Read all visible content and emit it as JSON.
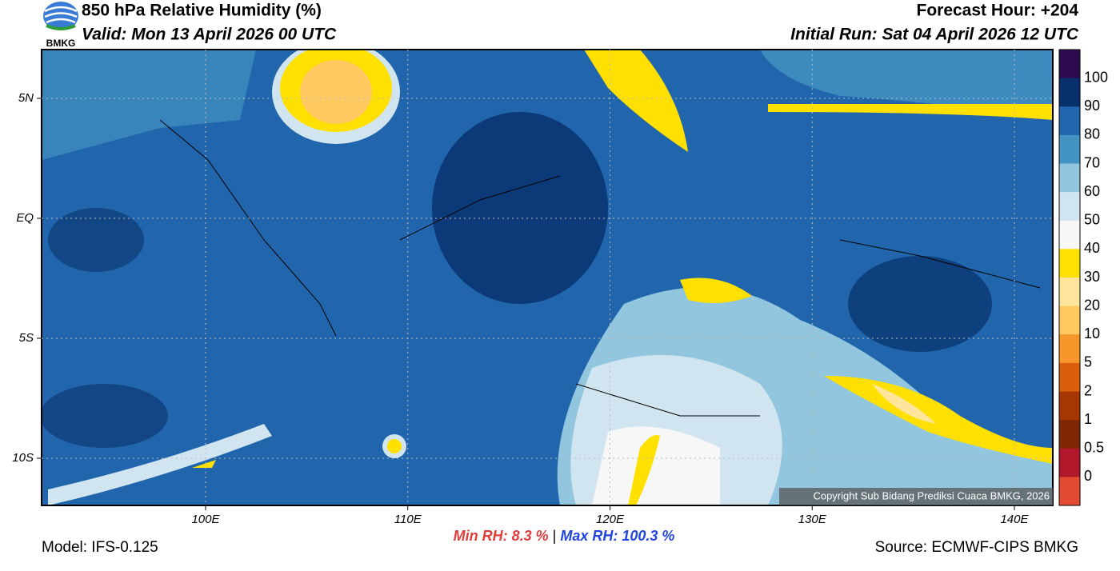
{
  "header": {
    "title": "850 hPa Relative Humidity (%)",
    "valid": "Valid: Mon 13 April 2026 00 UTC",
    "forecast_hour": "Forecast Hour: +204",
    "initial_run": "Initial Run: Sat 04 April 2026 12 UTC",
    "logo_text": "BMKG"
  },
  "map": {
    "lon_labels": [
      "100E",
      "110E",
      "120E",
      "130E",
      "140E"
    ],
    "lat_labels": [
      "5N",
      "EQ",
      "5S",
      "10S"
    ],
    "copyright": "Copyright Sub Bidang Prediksi Cuaca BMKG, 2026"
  },
  "colorbar": {
    "labels": [
      "100",
      "90",
      "80",
      "70",
      "60",
      "50",
      "40",
      "30",
      "20",
      "10",
      "5",
      "2",
      "1",
      "0.5",
      "0"
    ],
    "colors": [
      "#2d0b50",
      "#08306b",
      "#2166ac",
      "#4393c3",
      "#92c5de",
      "#d1e5f0",
      "#f7f7f7",
      "#ffe000",
      "#ffe59b",
      "#ffc860",
      "#f7962a",
      "#d95f0e",
      "#a63603",
      "#7f2704",
      "#b2182b",
      "#e34a33"
    ]
  },
  "stats": {
    "min_label": "Min RH:",
    "min_value": "8.3 %",
    "separator": "|",
    "max_label": "Max RH:",
    "max_value": "100.3 %"
  },
  "footer": {
    "model": "Model: IFS-0.125",
    "source": "Source: ECMWF-CIPS BMKG"
  }
}
